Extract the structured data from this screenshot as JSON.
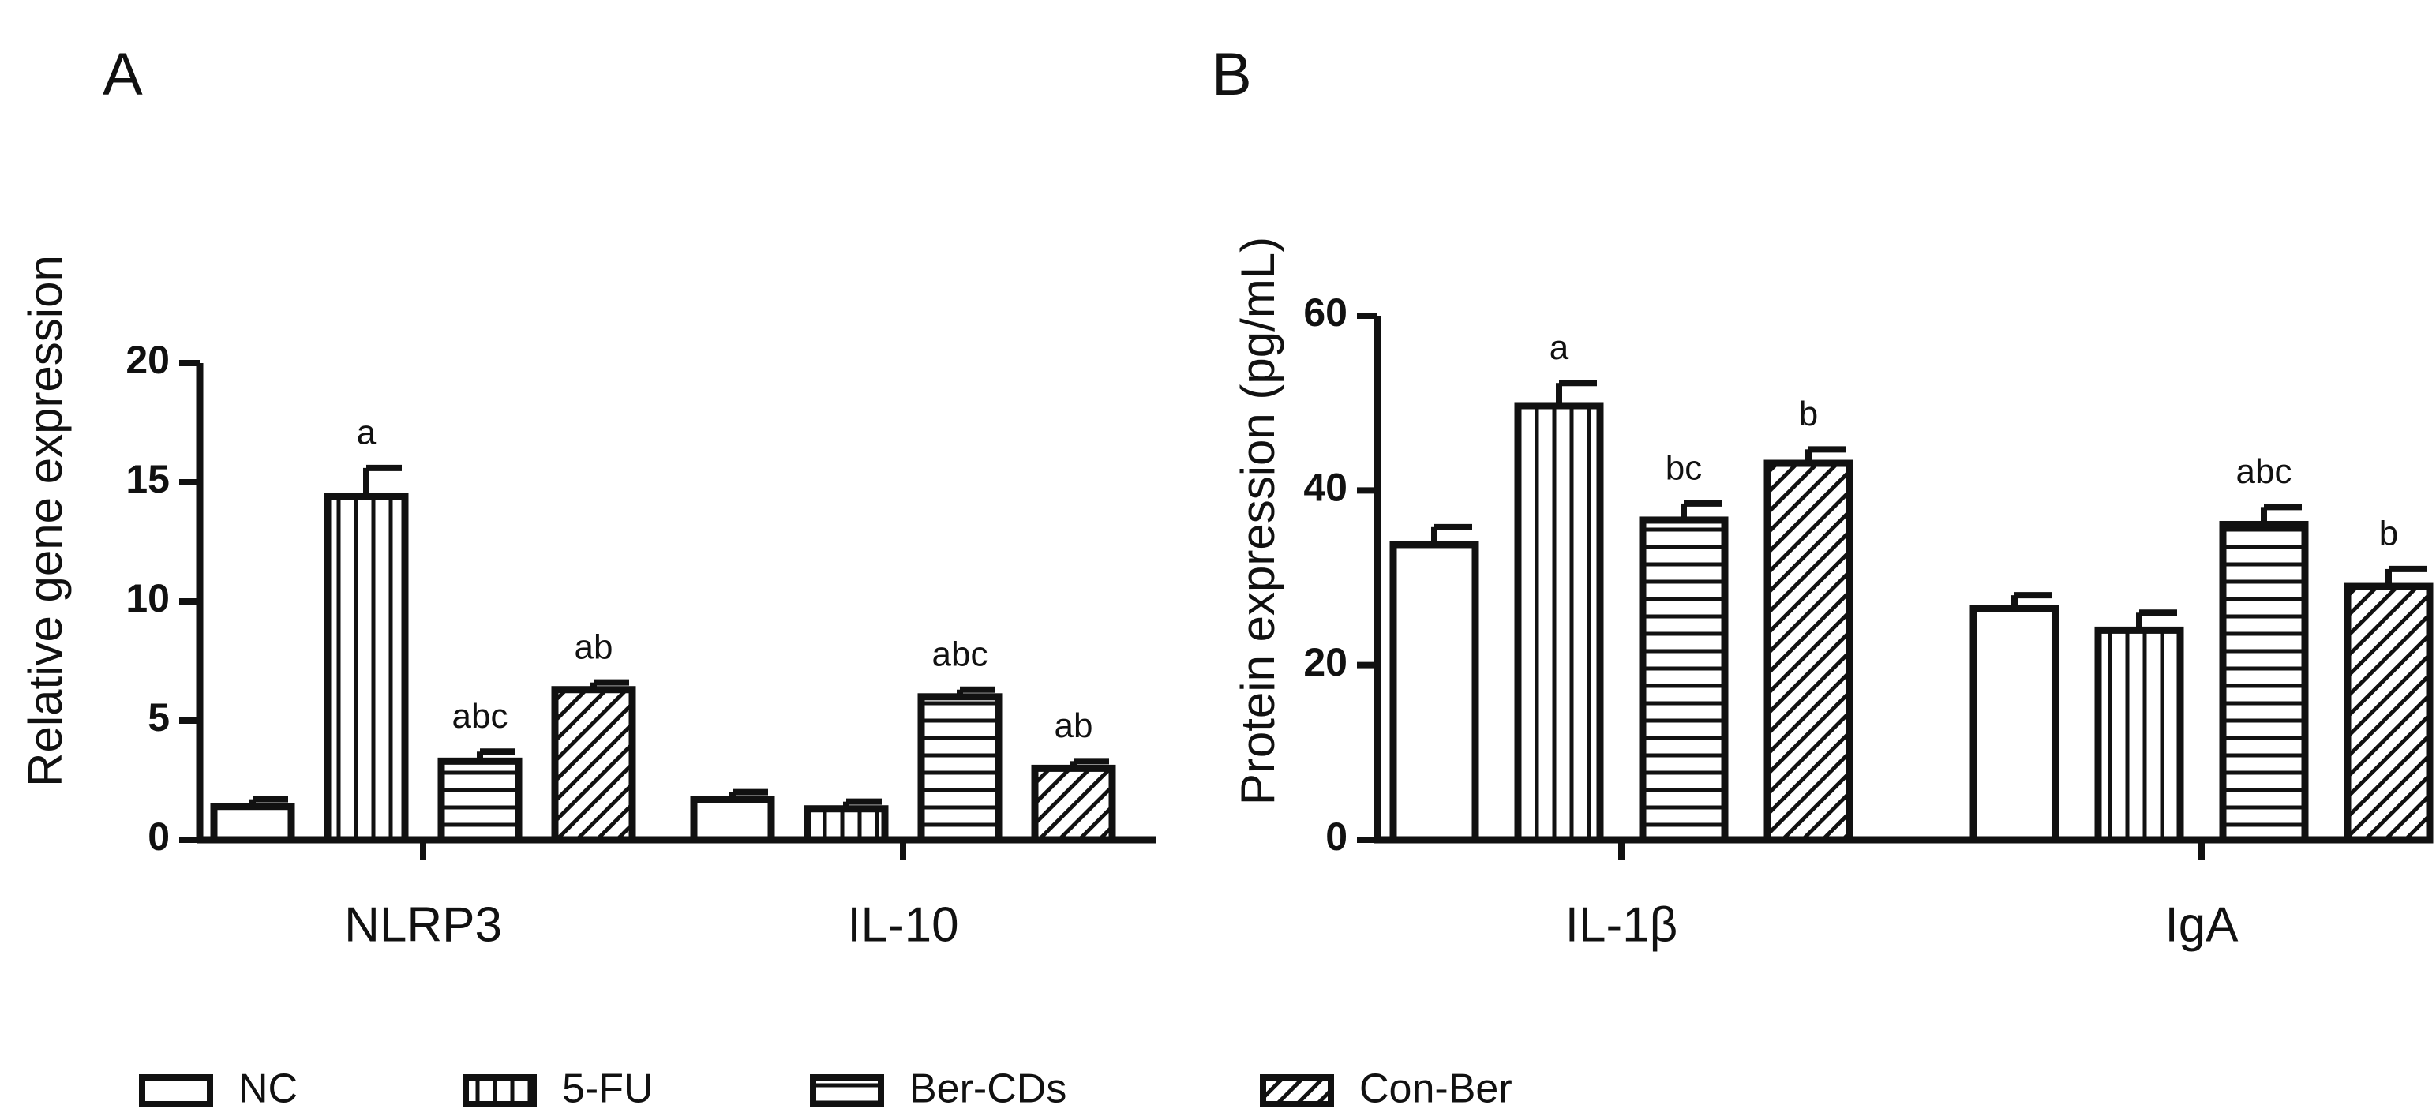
{
  "chart_data": [
    {
      "panel": "A",
      "type": "bar",
      "ylabel": "Relative gene expression",
      "xlabel": "",
      "ylim": [
        0,
        20
      ],
      "yticks": [
        0,
        5,
        10,
        15,
        20
      ],
      "categories": [
        "NLRP3",
        "IL-10"
      ],
      "series": [
        {
          "name": "NC",
          "values": [
            1.4,
            1.7
          ],
          "errors": [
            0.3,
            0.3
          ],
          "labels": [
            "",
            ""
          ]
        },
        {
          "name": "5-FU",
          "values": [
            14.4,
            1.3
          ],
          "errors": [
            1.2,
            0.3
          ],
          "labels": [
            "a",
            ""
          ]
        },
        {
          "name": "Ber-CDs",
          "values": [
            3.3,
            6.0
          ],
          "errors": [
            0.4,
            0.3
          ],
          "labels": [
            "abc",
            "abc"
          ]
        },
        {
          "name": "Con-Ber",
          "values": [
            6.3,
            3.0
          ],
          "errors": [
            0.3,
            0.3
          ],
          "labels": [
            "ab",
            "ab"
          ]
        }
      ]
    },
    {
      "panel": "B",
      "type": "bar",
      "ylabel": "Protein expression (pg/mL)",
      "xlabel": "",
      "ylim": [
        0,
        60
      ],
      "yticks": [
        0,
        20,
        40,
        60
      ],
      "categories": [
        "IL-1β",
        "IgA"
      ],
      "series": [
        {
          "name": "NC",
          "values": [
            33.8,
            26.5
          ],
          "errors": [
            2.0,
            1.5
          ],
          "labels": [
            "",
            ""
          ]
        },
        {
          "name": "5-FU",
          "values": [
            49.7,
            24.0
          ],
          "errors": [
            2.6,
            2.0
          ],
          "labels": [
            "a",
            ""
          ]
        },
        {
          "name": "Ber-CDs",
          "values": [
            36.6,
            36.1
          ],
          "errors": [
            1.9,
            2.0
          ],
          "labels": [
            "bc",
            "abc"
          ]
        },
        {
          "name": "Con-Ber",
          "values": [
            43.1,
            29.0
          ],
          "errors": [
            1.6,
            2.0
          ],
          "labels": [
            "b",
            "b"
          ]
        }
      ]
    }
  ],
  "legend": {
    "entries": [
      {
        "name": "NC",
        "pattern": "empty"
      },
      {
        "name": "5-FU",
        "pattern": "vertical"
      },
      {
        "name": "Ber-CDs",
        "pattern": "horizontal"
      },
      {
        "name": "Con-Ber",
        "pattern": "diagonal"
      }
    ]
  },
  "colors": {
    "ink": "#111111",
    "fill": "#ffffff"
  }
}
